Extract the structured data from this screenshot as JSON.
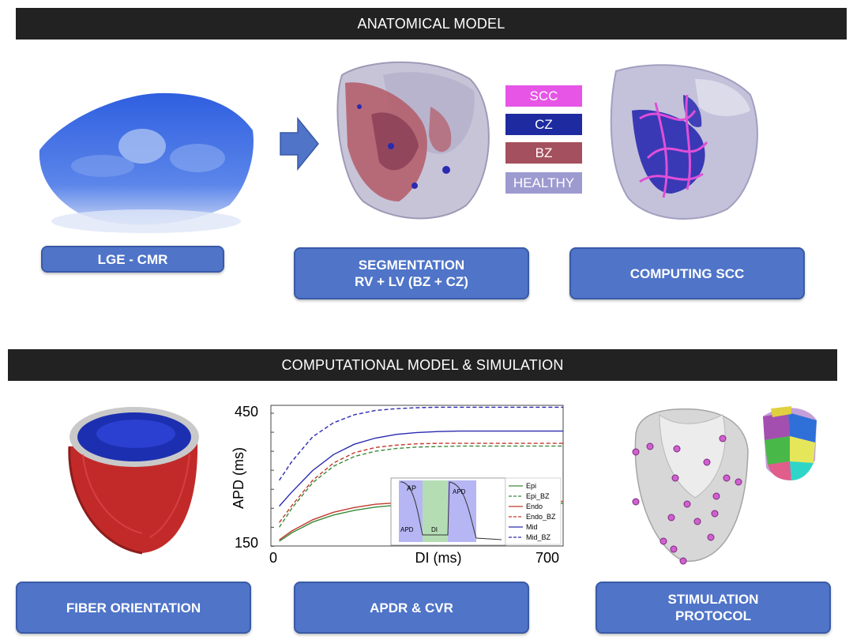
{
  "sections": {
    "top_title": "ANATOMICAL MODEL",
    "bottom_title": "COMPUTATIONAL MODEL & SIMULATION"
  },
  "steps": {
    "lge_cmr": "LGE - CMR",
    "segmentation_line1": "SEGMENTATION",
    "segmentation_line2": "RV + LV (BZ + CZ)",
    "computing_scc": "COMPUTING SCC",
    "fiber_orientation": "FIBER ORIENTATION",
    "apdr_cvr": "APDR & CVR",
    "stimulation_line1": "STIMULATION",
    "stimulation_line2": "PROTOCOL"
  },
  "tissue_legend": [
    {
      "label": "SCC",
      "color": "#e655e6"
    },
    {
      "label": "CZ",
      "color": "#1e2aa0"
    },
    {
      "label": "BZ",
      "color": "#a4505e"
    },
    {
      "label": "HEALTHY",
      "color": "#9d9ad0"
    }
  ],
  "chart_data": {
    "type": "line",
    "xlabel": "DI (ms)",
    "ylabel": "APD (ms)",
    "xlim": [
      0,
      700
    ],
    "ylim": [
      150,
      450
    ],
    "x_tick_labels": [
      "0",
      "700"
    ],
    "y_tick_labels": [
      "150",
      "450"
    ],
    "legend_position": "bottom-right",
    "x": [
      20,
      50,
      100,
      150,
      200,
      250,
      300,
      350,
      400,
      450,
      500,
      550,
      600,
      650,
      700
    ],
    "series": [
      {
        "name": "Epi",
        "color": "#3a8a3a",
        "dash": false,
        "values": [
          160,
          178,
          201,
          216,
          226,
          233,
          237,
          239,
          240,
          241,
          241,
          241,
          241,
          241,
          241
        ]
      },
      {
        "name": "Epi_BZ",
        "color": "#3a8a3a",
        "dash": true,
        "values": [
          190,
          230,
          285,
          320,
          341,
          352,
          358,
          361,
          362,
          363,
          363,
          363,
          363,
          363,
          363
        ]
      },
      {
        "name": "Endo",
        "color": "#c0392b",
        "dash": false,
        "values": [
          163,
          182,
          206,
          222,
          232,
          239,
          242,
          244,
          245,
          245,
          245,
          245,
          245,
          245,
          245
        ]
      },
      {
        "name": "Endo_BZ",
        "color": "#c0392b",
        "dash": true,
        "values": [
          200,
          236,
          290,
          327,
          349,
          360,
          365,
          368,
          369,
          369,
          369,
          369,
          369,
          369,
          369
        ]
      },
      {
        "name": "Mid",
        "color": "#2a2ab0",
        "dash": false,
        "values": [
          235,
          265,
          311,
          345,
          367,
          380,
          388,
          392,
          394,
          395,
          395,
          395,
          395,
          395,
          395
        ]
      },
      {
        "name": "Mid_BZ",
        "color": "#2a2ab0",
        "dash": true,
        "values": [
          290,
          330,
          383,
          413,
          430,
          439,
          443,
          445,
          446,
          446,
          446,
          446,
          446,
          446,
          446
        ]
      }
    ],
    "inset_labels": [
      "AP",
      "APD",
      "DI",
      "APD"
    ]
  }
}
